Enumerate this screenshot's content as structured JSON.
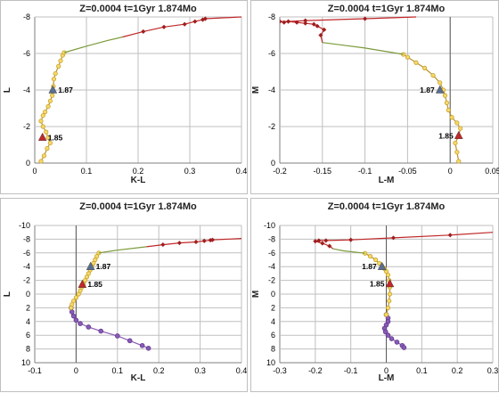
{
  "chart_data": [
    {
      "type": "scatter",
      "title": "Z=0.0004  t=1Gyr  1.874Mo",
      "xlabel": "K-L",
      "ylabel": "L",
      "xlim": [
        0,
        0.4
      ],
      "ylim": [
        0,
        -8
      ],
      "xticks": [
        "0",
        "0.1",
        "0.2",
        "0.3",
        "0.4"
      ],
      "yticks": [
        "-8",
        "-6",
        "-4",
        "-2",
        "0"
      ],
      "grid": true,
      "series": [
        {
          "color": "#e8c13a",
          "x": [
            0.012,
            0.018,
            0.024,
            0.03,
            0.026,
            0.022,
            0.016,
            0.012,
            0.016,
            0.02,
            0.026,
            0.03,
            0.034,
            0.036,
            0.037,
            0.04,
            0.046,
            0.05,
            0.054,
            0.057
          ],
          "y": [
            -0.1,
            -0.4,
            -0.8,
            -1.1,
            -1.4,
            -1.7,
            -2.0,
            -2.3,
            -2.6,
            -2.8,
            -3.1,
            -3.4,
            -3.7,
            -4.2,
            -4.6,
            -4.9,
            -5.3,
            -5.6,
            -5.9,
            -6.05
          ]
        },
        {
          "color": "#7a9a3a",
          "x": [
            0.057,
            0.1,
            0.14,
            0.17
          ],
          "y": [
            -6.05,
            -6.4,
            -6.7,
            -6.9
          ]
        },
        {
          "color": "#c0282a",
          "x": [
            0.17,
            0.21,
            0.25,
            0.29,
            0.31,
            0.325,
            0.33,
            0.4
          ],
          "y": [
            -6.9,
            -7.2,
            -7.45,
            -7.6,
            -7.75,
            -7.85,
            -7.9,
            -8.0
          ]
        }
      ],
      "markers": [
        {
          "label": "1.87",
          "x": 0.035,
          "y": -4.0,
          "color": "#5a6e8e"
        },
        {
          "label": "1.85",
          "x": 0.015,
          "y": -1.4,
          "color": "#c0282a"
        }
      ]
    },
    {
      "type": "scatter",
      "title": "Z=0.0004  t=1Gyr  1.874Mo",
      "xlabel": "L-M",
      "ylabel": "M",
      "xlim": [
        -0.2,
        0.05
      ],
      "ylim": [
        0,
        -8
      ],
      "xticks": [
        "-0.2",
        "-0.15",
        "-0.1",
        "-0.05",
        "0",
        "0.05"
      ],
      "yticks": [
        "-8",
        "-6",
        "-4",
        "-2",
        "0"
      ],
      "grid": true,
      "series": [
        {
          "color": "#e8c13a",
          "x": [
            0.01,
            0.008,
            0.006,
            0.01,
            0.012,
            0.008,
            0.002,
            -0.002,
            -0.004,
            -0.006,
            -0.008,
            -0.012,
            -0.02,
            -0.03,
            -0.04,
            -0.05,
            -0.055
          ],
          "y": [
            -0.1,
            -0.6,
            -1.1,
            -1.5,
            -1.9,
            -2.2,
            -2.5,
            -2.9,
            -3.3,
            -3.7,
            -4.0,
            -4.4,
            -4.8,
            -5.2,
            -5.5,
            -5.8,
            -5.95
          ]
        },
        {
          "color": "#7a9a3a",
          "x": [
            -0.055,
            -0.1,
            -0.15
          ],
          "y": [
            -5.95,
            -6.3,
            -6.6
          ]
        },
        {
          "color": "#c0282a",
          "x": [
            -0.15,
            -0.152,
            -0.148,
            -0.156,
            -0.16,
            -0.17,
            -0.18,
            -0.19,
            -0.195,
            -0.2,
            -0.19,
            -0.17,
            -0.1,
            -0.04
          ],
          "y": [
            -6.6,
            -7.0,
            -7.3,
            -7.5,
            -7.6,
            -7.65,
            -7.7,
            -7.75,
            -7.7,
            -7.75,
            -7.75,
            -7.8,
            -7.9,
            -8.0
          ]
        }
      ],
      "markers": [
        {
          "label": "1.87",
          "x": -0.012,
          "y": -4.0,
          "color": "#5a6e8e"
        },
        {
          "label": "1.85",
          "x": 0.01,
          "y": -1.5,
          "color": "#c0282a"
        }
      ]
    },
    {
      "type": "scatter",
      "title": "Z=0.0004  t=1Gyr  1.874Mo",
      "xlabel": "K-L",
      "ylabel": "L",
      "xlim": [
        -0.1,
        0.4
      ],
      "ylim": [
        10,
        -10
      ],
      "xticks": [
        "-0.1",
        "0",
        "0.1",
        "0.2",
        "0.3",
        "0.4"
      ],
      "yticks": [
        "-10",
        "-8",
        "-6",
        "-4",
        "-2",
        "0",
        "2",
        "4",
        "6",
        "8",
        "10"
      ],
      "grid": true,
      "series": [
        {
          "color": "#8a5ab8",
          "x": [
            -0.012,
            -0.01,
            -0.006,
            0.0,
            0.01,
            0.03,
            0.06,
            0.1,
            0.13,
            0.16,
            0.175
          ],
          "y": [
            2.0,
            2.6,
            3.2,
            3.8,
            4.3,
            4.8,
            5.4,
            6.1,
            6.8,
            7.5,
            7.9
          ]
        },
        {
          "color": "#e8c13a",
          "x": [
            -0.012,
            -0.01,
            -0.006,
            0.0,
            0.006,
            0.01,
            0.014,
            0.018,
            0.022,
            0.026,
            0.03,
            0.034,
            0.038,
            0.042,
            0.046,
            0.05,
            0.055
          ],
          "y": [
            2.0,
            1.5,
            1.0,
            0.5,
            0.0,
            -0.5,
            -1.0,
            -1.5,
            -2.0,
            -2.5,
            -3.0,
            -3.5,
            -4.0,
            -4.5,
            -5.0,
            -5.5,
            -6.0
          ]
        },
        {
          "color": "#7a9a3a",
          "x": [
            0.055,
            0.1,
            0.17
          ],
          "y": [
            -6.0,
            -6.4,
            -6.9
          ]
        },
        {
          "color": "#c0282a",
          "x": [
            0.17,
            0.21,
            0.25,
            0.29,
            0.31,
            0.325,
            0.33,
            0.4
          ],
          "y": [
            -6.9,
            -7.2,
            -7.45,
            -7.6,
            -7.75,
            -7.85,
            -7.9,
            -8.1
          ]
        }
      ],
      "markers": [
        {
          "label": "1.87",
          "x": 0.035,
          "y": -4.0,
          "color": "#5a6e8e"
        },
        {
          "label": "1.85",
          "x": 0.015,
          "y": -1.4,
          "color": "#c0282a"
        }
      ]
    },
    {
      "type": "scatter",
      "title": "Z=0.0004  t=1Gyr  1.874Mo",
      "xlabel": "L-M",
      "ylabel": "M",
      "xlim": [
        -0.3,
        0.3
      ],
      "ylim": [
        10,
        -10
      ],
      "xticks": [
        "-0.3",
        "-0.2",
        "-0.1",
        "0",
        "0.1",
        "0.2",
        "0.3"
      ],
      "yticks": [
        "-10",
        "-8",
        "-6",
        "-4",
        "-2",
        "0",
        "2",
        "4",
        "6",
        "8",
        "10"
      ],
      "grid": true,
      "series": [
        {
          "color": "#8a5ab8",
          "x": [
            0.0,
            0.005,
            0.005,
            0.0,
            -0.005,
            -0.002,
            0.005,
            0.015,
            0.03,
            0.045,
            0.05
          ],
          "y": [
            3.0,
            3.5,
            4.0,
            4.5,
            5.0,
            5.5,
            6.0,
            6.5,
            7.0,
            7.5,
            7.8
          ]
        },
        {
          "color": "#e8c13a",
          "x": [
            0.0,
            0.005,
            0.008,
            0.01,
            0.01,
            0.008,
            0.005,
            0.0,
            -0.005,
            -0.012,
            -0.02,
            -0.03,
            -0.045,
            -0.06
          ],
          "y": [
            3.0,
            2.0,
            1.0,
            0.0,
            -1.0,
            -2.0,
            -2.8,
            -3.3,
            -3.7,
            -4.1,
            -4.5,
            -5.0,
            -5.5,
            -5.95
          ]
        },
        {
          "color": "#7a9a3a",
          "x": [
            -0.06,
            -0.12,
            -0.15
          ],
          "y": [
            -5.95,
            -6.3,
            -6.6
          ]
        },
        {
          "color": "#c0282a",
          "x": [
            -0.15,
            -0.16,
            -0.18,
            -0.2,
            -0.19,
            -0.17,
            -0.1,
            0.02,
            0.18,
            0.3
          ],
          "y": [
            -6.6,
            -7.0,
            -7.4,
            -7.7,
            -7.8,
            -7.8,
            -7.9,
            -8.2,
            -8.6,
            -9.0
          ]
        }
      ],
      "markers": [
        {
          "label": "1.87",
          "x": -0.012,
          "y": -4.0,
          "color": "#5a6e8e"
        },
        {
          "label": "1.85",
          "x": 0.01,
          "y": -1.5,
          "color": "#c0282a"
        }
      ]
    }
  ]
}
